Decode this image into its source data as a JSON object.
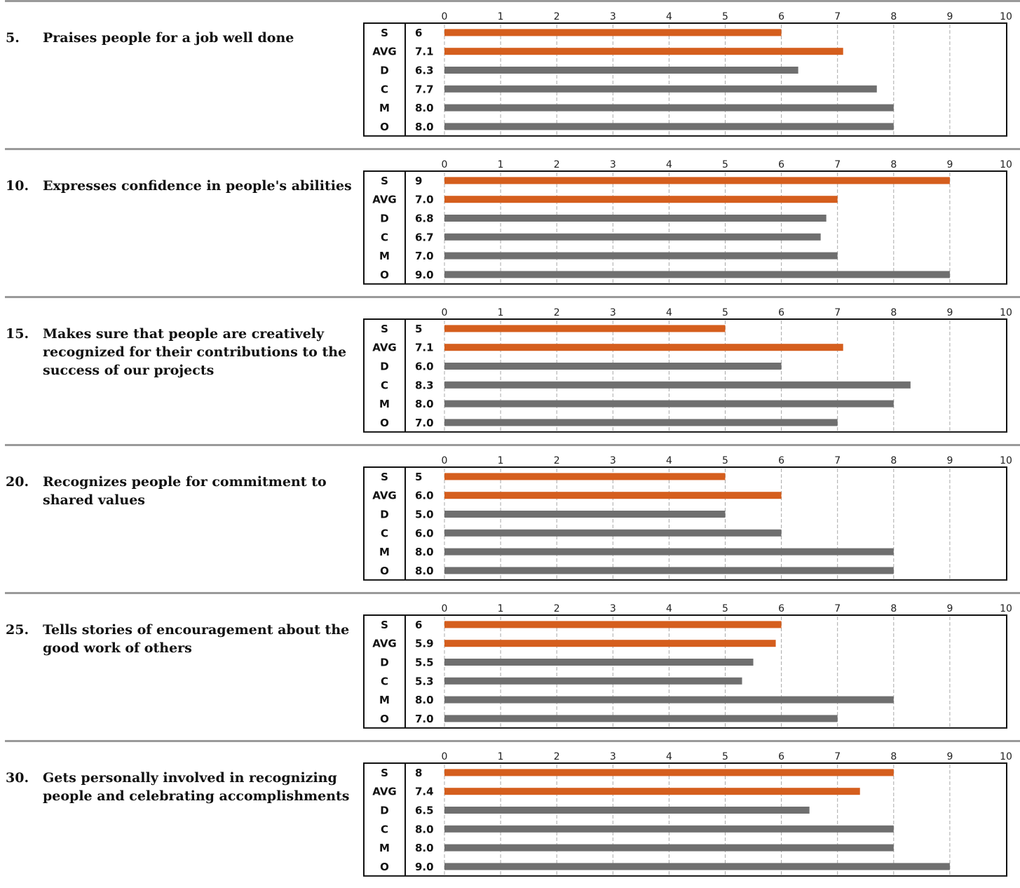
{
  "colors": {
    "self": "#D55E1D",
    "avg": "#D55E1D",
    "other": "#6F6F6F",
    "grid": "#A8A8A8",
    "divider": "#9A9A9A"
  },
  "chart_data": [
    {
      "type": "bar",
      "orientation": "horizontal",
      "item_number": "5.",
      "title": "Praises people for a job well done",
      "xlim": [
        0,
        10
      ],
      "x_ticks": [
        "0",
        "1",
        "2",
        "3",
        "4",
        "5",
        "6",
        "7",
        "8",
        "9",
        "10"
      ],
      "grid": "vertical dashed",
      "categories": [
        "S",
        "AVG",
        "D",
        "C",
        "M",
        "O"
      ],
      "value_labels": [
        "6",
        "7.1",
        "6.3",
        "7.7",
        "8.0",
        "8.0"
      ],
      "values": [
        6,
        7.1,
        6.3,
        7.7,
        8.0,
        8.0
      ]
    },
    {
      "type": "bar",
      "orientation": "horizontal",
      "item_number": "10.",
      "title": "Expresses confidence in people's abilities",
      "xlim": [
        0,
        10
      ],
      "x_ticks": [
        "0",
        "1",
        "2",
        "3",
        "4",
        "5",
        "6",
        "7",
        "8",
        "9",
        "10"
      ],
      "grid": "vertical dashed",
      "categories": [
        "S",
        "AVG",
        "D",
        "C",
        "M",
        "O"
      ],
      "value_labels": [
        "9",
        "7.0",
        "6.8",
        "6.7",
        "7.0",
        "9.0"
      ],
      "values": [
        9,
        7.0,
        6.8,
        6.7,
        7.0,
        9.0
      ]
    },
    {
      "type": "bar",
      "orientation": "horizontal",
      "item_number": "15.",
      "title": "Makes sure that people are creatively recognized for their contributions to the success of our projects",
      "xlim": [
        0,
        10
      ],
      "x_ticks": [
        "0",
        "1",
        "2",
        "3",
        "4",
        "5",
        "6",
        "7",
        "8",
        "9",
        "10"
      ],
      "grid": "vertical dashed",
      "categories": [
        "S",
        "AVG",
        "D",
        "C",
        "M",
        "O"
      ],
      "value_labels": [
        "5",
        "7.1",
        "6.0",
        "8.3",
        "8.0",
        "7.0"
      ],
      "values": [
        5,
        7.1,
        6.0,
        8.3,
        8.0,
        7.0
      ]
    },
    {
      "type": "bar",
      "orientation": "horizontal",
      "item_number": "20.",
      "title": "Recognizes people for commitment to shared values",
      "xlim": [
        0,
        10
      ],
      "x_ticks": [
        "0",
        "1",
        "2",
        "3",
        "4",
        "5",
        "6",
        "7",
        "8",
        "9",
        "10"
      ],
      "grid": "vertical dashed",
      "categories": [
        "S",
        "AVG",
        "D",
        "C",
        "M",
        "O"
      ],
      "value_labels": [
        "5",
        "6.0",
        "5.0",
        "6.0",
        "8.0",
        "8.0"
      ],
      "values": [
        5,
        6.0,
        5.0,
        6.0,
        8.0,
        8.0
      ]
    },
    {
      "type": "bar",
      "orientation": "horizontal",
      "item_number": "25.",
      "title": "Tells stories of encouragement about the good work of others",
      "xlim": [
        0,
        10
      ],
      "x_ticks": [
        "0",
        "1",
        "2",
        "3",
        "4",
        "5",
        "6",
        "7",
        "8",
        "9",
        "10"
      ],
      "grid": "vertical dashed",
      "categories": [
        "S",
        "AVG",
        "D",
        "C",
        "M",
        "O"
      ],
      "value_labels": [
        "6",
        "5.9",
        "5.5",
        "5.3",
        "8.0",
        "7.0"
      ],
      "values": [
        6,
        5.9,
        5.5,
        5.3,
        8.0,
        7.0
      ]
    },
    {
      "type": "bar",
      "orientation": "horizontal",
      "item_number": "30.",
      "title": "Gets personally involved in recognizing people and celebrating accomplishments",
      "xlim": [
        0,
        10
      ],
      "x_ticks": [
        "0",
        "1",
        "2",
        "3",
        "4",
        "5",
        "6",
        "7",
        "8",
        "9",
        "10"
      ],
      "grid": "vertical dashed",
      "categories": [
        "S",
        "AVG",
        "D",
        "C",
        "M",
        "O"
      ],
      "value_labels": [
        "8",
        "7.4",
        "6.5",
        "8.0",
        "8.0",
        "9.0"
      ],
      "values": [
        8,
        7.4,
        6.5,
        8.0,
        8.0,
        9.0
      ]
    }
  ]
}
